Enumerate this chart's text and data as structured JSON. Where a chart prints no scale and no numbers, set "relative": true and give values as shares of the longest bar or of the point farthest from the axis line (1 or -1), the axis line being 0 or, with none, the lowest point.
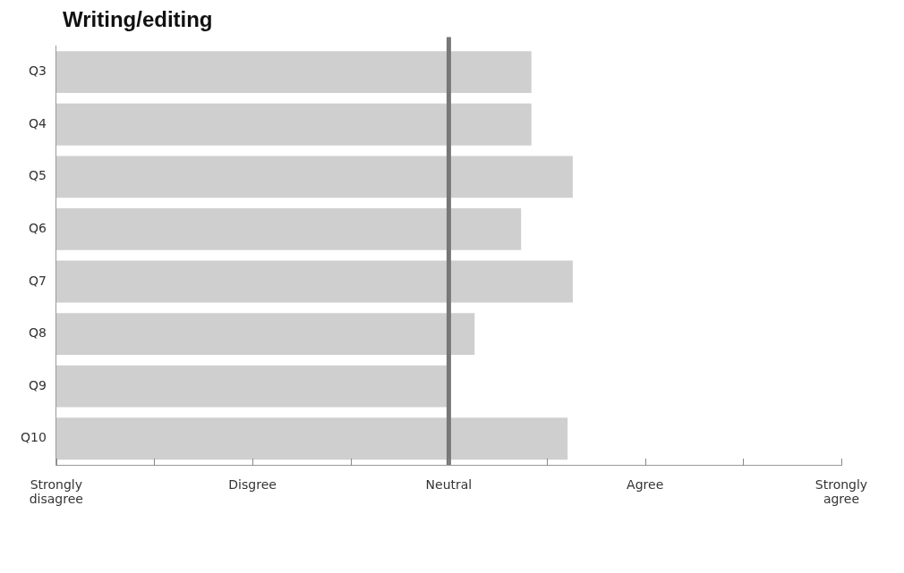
{
  "chart_data": {
    "type": "bar",
    "orientation": "horizontal",
    "title": "Writing/editing",
    "relative": true,
    "categories": [
      "Q3",
      "Q4",
      "Q5",
      "Q6",
      "Q7",
      "Q8",
      "Q9",
      "Q10"
    ],
    "values": [
      0.92,
      0.92,
      1,
      0.9,
      1.0,
      0.81,
      0.76,
      0.99
    ],
    "color": "#cfcfcf",
    "ref_lines": [
      {
        "axis": "x",
        "value": 0.76,
        "label": null,
        "color": "#777777"
      }
    ],
    "annotations": [
      "Strongly disagree",
      "Disgree",
      "Neutral",
      "Agree",
      "Strongly agree"
    ],
    "legend": false
  }
}
